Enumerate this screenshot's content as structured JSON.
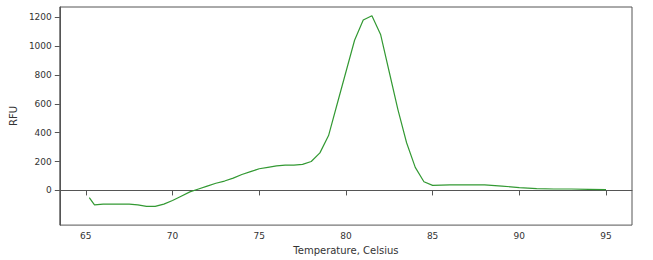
{
  "chart_data": {
    "type": "line",
    "x_label": "Temperature, Celsius",
    "y_label": "RFU",
    "x": [
      65.2,
      65.5,
      66,
      67,
      67.5,
      68,
      68.5,
      69,
      69.5,
      70,
      70.5,
      71,
      71.5,
      72,
      72.5,
      73,
      73.5,
      74,
      74.5,
      75,
      75.5,
      76,
      76.5,
      77,
      77.5,
      78,
      78.5,
      79,
      79.5,
      80,
      80.5,
      81,
      81.5,
      82,
      82.5,
      83,
      83.5,
      84,
      84.5,
      85,
      86,
      87,
      88,
      89,
      90,
      91,
      92,
      93,
      94,
      95
    ],
    "values": [
      -50,
      -100,
      -95,
      -95,
      -95,
      -100,
      -110,
      -110,
      -95,
      -70,
      -40,
      -10,
      10,
      30,
      50,
      65,
      85,
      110,
      130,
      150,
      160,
      170,
      175,
      175,
      180,
      200,
      260,
      380,
      600,
      820,
      1040,
      1180,
      1210,
      1080,
      820,
      560,
      330,
      160,
      60,
      35,
      38,
      38,
      38,
      30,
      20,
      12,
      10,
      10,
      8,
      5
    ],
    "color": "#339933",
    "xlim": [
      63.5,
      96.5
    ],
    "xticks": [
      65,
      70,
      75,
      80,
      85,
      90,
      95
    ],
    "ylim": [
      -240,
      1270
    ],
    "yticks": [
      0,
      200,
      400,
      600,
      800,
      1000,
      1200
    ],
    "grid": false
  }
}
